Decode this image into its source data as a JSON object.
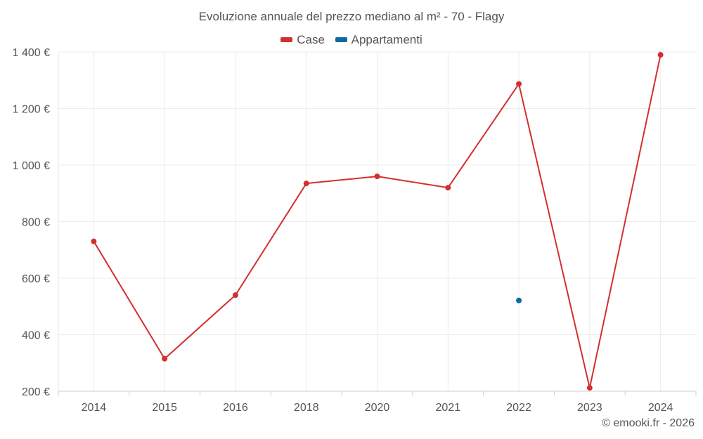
{
  "chart_data": {
    "type": "line",
    "title": "Evoluzione annuale del prezzo mediano al m² - 70 - Flagy",
    "categories": [
      "2014",
      "2015",
      "2016",
      "2018",
      "2020",
      "2021",
      "2022",
      "2023",
      "2024"
    ],
    "y_tick_labels": [
      "200 €",
      "400 €",
      "600 €",
      "800 €",
      "1 000 €",
      "1 200 €",
      "1 400 €"
    ],
    "y_ticks": [
      200,
      400,
      600,
      800,
      1000,
      1200,
      1400
    ],
    "ylim": [
      200,
      1400
    ],
    "grid": true,
    "legend_position": "top",
    "series": [
      {
        "name": "Case",
        "color": "#d32f2f",
        "values": [
          730,
          315,
          540,
          935,
          960,
          920,
          1287,
          212,
          1390
        ]
      },
      {
        "name": "Appartamenti",
        "color": "#0b69a3",
        "values": [
          null,
          null,
          null,
          null,
          null,
          null,
          521,
          null,
          null
        ]
      }
    ]
  },
  "footer": {
    "credit": "© emooki.fr - 2026"
  }
}
